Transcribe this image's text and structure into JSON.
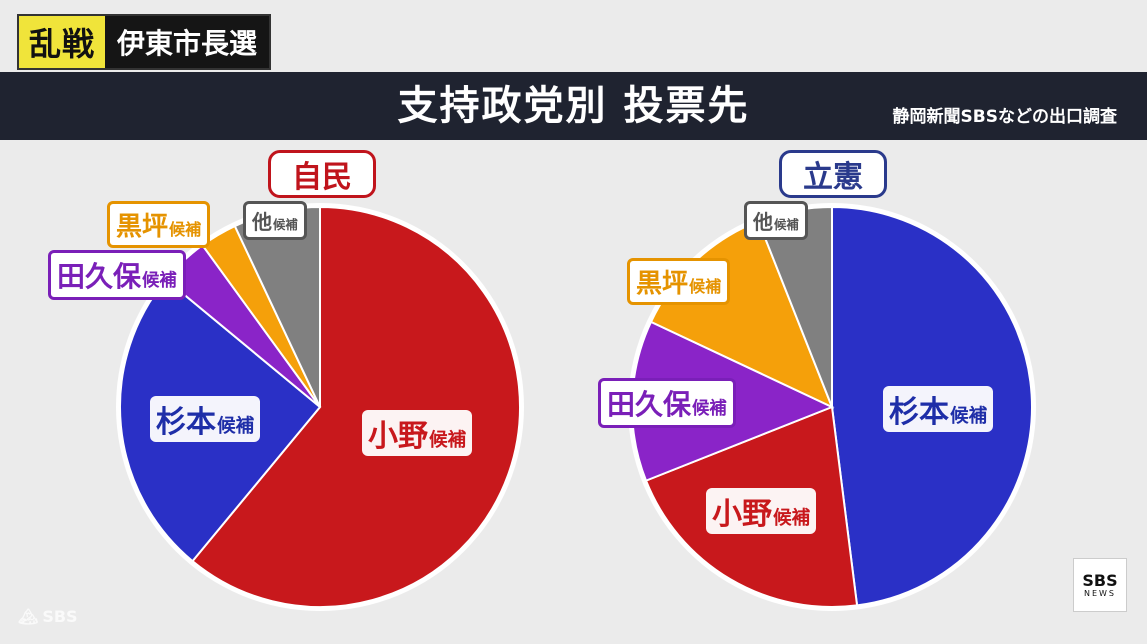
{
  "top_tag": {
    "accent": "乱戦",
    "text": "伊東市長選"
  },
  "header": {
    "title": "支持政党別 投票先",
    "source": "静岡新聞SBSなどの出口調査"
  },
  "chart_data": [
    {
      "type": "pie",
      "title": "自民",
      "title_color": "#c0141c",
      "start": "12 o'clock",
      "direction": "clockwise",
      "slices": [
        {
          "name": "小野",
          "suffix": "候補",
          "value": 61,
          "color": "#c8181c",
          "label_color": "#c8181c"
        },
        {
          "name": "杉本",
          "suffix": "候補",
          "value": 25,
          "color": "#2a30c6",
          "label_color": "#1e2ea8"
        },
        {
          "name": "田久保",
          "suffix": "候補",
          "value": 4,
          "color": "#8a24c8",
          "label_color": "#7a1fb8"
        },
        {
          "name": "黒坪",
          "suffix": "候補",
          "value": 3,
          "color": "#f5a00a",
          "label_color": "#e59300"
        },
        {
          "name": "他",
          "suffix": "候補",
          "value": 7,
          "color": "#808080",
          "label_color": "#555555"
        }
      ]
    },
    {
      "type": "pie",
      "title": "立憲",
      "title_color": "#2a3a8c",
      "start": "12 o'clock",
      "direction": "clockwise",
      "slices": [
        {
          "name": "杉本",
          "suffix": "候補",
          "value": 48,
          "color": "#2a30c6",
          "label_color": "#1e2ea8"
        },
        {
          "name": "小野",
          "suffix": "候補",
          "value": 21,
          "color": "#c8181c",
          "label_color": "#c8181c"
        },
        {
          "name": "田久保",
          "suffix": "候補",
          "value": 13,
          "color": "#8a24c8",
          "label_color": "#7a1fb8"
        },
        {
          "name": "黒坪",
          "suffix": "候補",
          "value": 12,
          "color": "#f5a00a",
          "label_color": "#e59300"
        },
        {
          "name": "他",
          "suffix": "候補",
          "value": 6,
          "color": "#808080",
          "label_color": "#555555"
        }
      ]
    }
  ],
  "logo": {
    "line1": "SBS",
    "line2": "NEWS"
  },
  "watermark": "SBS"
}
